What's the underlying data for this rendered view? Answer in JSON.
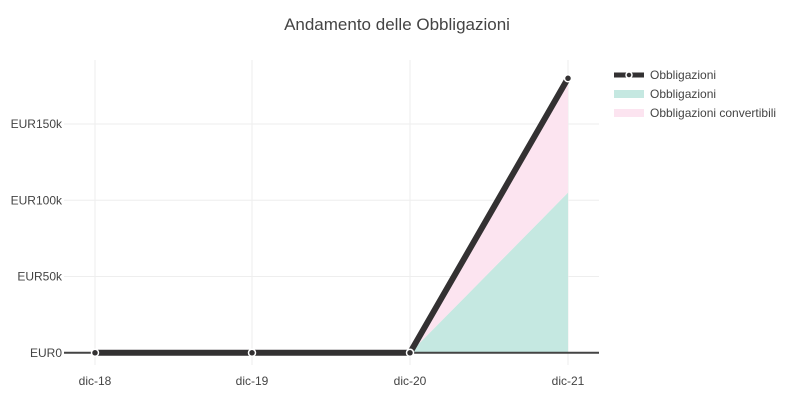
{
  "chart_data": {
    "type": "area",
    "title": "Andamento delle Obbligazioni",
    "x_categories": [
      "dic-18",
      "dic-19",
      "dic-20",
      "dic-21"
    ],
    "y_ticks": [
      {
        "value": 0,
        "label": "EUR0"
      },
      {
        "value": 50000,
        "label": "EUR50k"
      },
      {
        "value": 100000,
        "label": "EUR100k"
      },
      {
        "value": 150000,
        "label": "EUR150k"
      }
    ],
    "ylim": [
      -8000,
      192000
    ],
    "grid": true,
    "legend_position": "top-right",
    "series": [
      {
        "name": "Obbligazioni",
        "kind": "line",
        "color": "#333132",
        "values": [
          0,
          0,
          0,
          180000
        ]
      },
      {
        "name": "Obbligazioni",
        "kind": "stacked-area",
        "color": "#c5e8e1",
        "values": [
          0,
          0,
          0,
          105000
        ]
      },
      {
        "name": "Obbligazioni convertibili",
        "kind": "stacked-area",
        "color": "#fce4f0",
        "values": [
          0,
          0,
          0,
          75000
        ]
      }
    ]
  }
}
